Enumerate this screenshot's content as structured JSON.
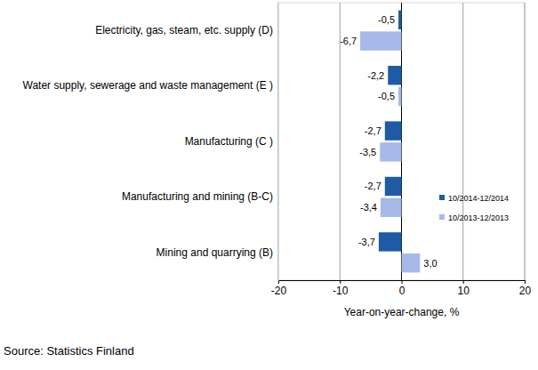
{
  "chart_data": {
    "type": "bar",
    "orientation": "horizontal",
    "categories": [
      "Electricity, gas, steam, etc. supply  (D)",
      "Water supply, sewerage and waste management (E )",
      "Manufacturing (C )",
      "Manufacturing and mining (B-C)",
      "Mining and quarrying (B)"
    ],
    "series": [
      {
        "name": "10/2014-12/2014",
        "color": "#1f5aa6",
        "values": [
          -0.5,
          -2.2,
          -2.7,
          -2.7,
          -3.7
        ],
        "value_labels": [
          "-0,5",
          "-2,2",
          "-2,7",
          "-2,7",
          "-3,7"
        ]
      },
      {
        "name": "10/2013-12/2013",
        "color": "#a6b9e8",
        "values": [
          -6.7,
          -0.5,
          -3.5,
          -3.4,
          3.0
        ],
        "value_labels": [
          "-6,7",
          "-0,5",
          "-3,5",
          "-3,4",
          "3,0"
        ]
      }
    ],
    "x_label": "Year-on-year-change, %",
    "xlim": [
      -20,
      20
    ],
    "xticks": [
      -20,
      -10,
      0,
      10,
      20
    ],
    "grid": true,
    "legend": "lower right",
    "data_labels": true,
    "annotations": [
      "Source: Statistics Finland"
    ]
  }
}
